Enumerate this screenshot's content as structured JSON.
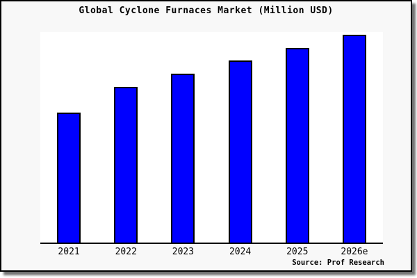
{
  "source": "Source: Prof Research",
  "chart_data": {
    "type": "bar",
    "title": "Global Cyclone Furnaces Market (Million USD)",
    "categories": [
      "2021",
      "2022",
      "2023",
      "2024",
      "2025",
      "2026e"
    ],
    "values": [
      62.5,
      74.9,
      81.3,
      87.6,
      93.6,
      100
    ],
    "values_note": "no y-axis shown; values estimated relative to 2026e = 100",
    "xlabel": "",
    "ylabel": "",
    "ylim": [
      0,
      101.5
    ],
    "grid": false,
    "legend": false,
    "bar_color": "#0000ff",
    "bar_border_color": "#000000"
  },
  "colors": {
    "bar_fill": "#0000ff",
    "bar_border": "#000000",
    "plot_background": "#ffffff",
    "frame_background": "#f8f8f8",
    "frame_border": "#000000",
    "axis_line": "#000000",
    "shadow": "#808080",
    "text": "#000000"
  }
}
